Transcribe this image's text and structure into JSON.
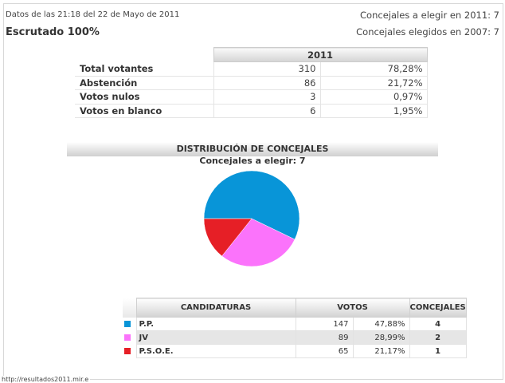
{
  "header": {
    "date_text": "Datos de las 21:18  del 22 de Mayo de 2011",
    "escrutado": "Escrutado 100%",
    "concejales_elegir": "Concejales a elegir en 2011: 7",
    "concejales_elegidos": "Concejales elegidos en 2007: 7"
  },
  "summary": {
    "year": "2011",
    "rows": [
      {
        "label": "Total votantes",
        "count": "310",
        "pct": "78,28%"
      },
      {
        "label": "Abstención",
        "count": "86",
        "pct": "21,72%"
      },
      {
        "label": "Votos nulos",
        "count": "3",
        "pct": "0,97%"
      },
      {
        "label": "Votos en blanco",
        "count": "6",
        "pct": "1,95%"
      }
    ]
  },
  "distribution": {
    "title": "DISTRIBUCIÓN DE CONCEJALES",
    "subtitle": "Concejales a elegir: 7"
  },
  "chart_data": {
    "type": "pie",
    "labels": [
      "P.P.",
      "JV",
      "P.S.O.E."
    ],
    "values": [
      4,
      2,
      1
    ],
    "colors": [
      "#0895d8",
      "#fb73fb",
      "#e61f26"
    ],
    "title": "DISTRIBUCIÓN DE CONCEJALES"
  },
  "candidates": {
    "headers": {
      "candidaturas": "CANDIDATURAS",
      "votos": "VOTOS",
      "concejales": "CONCEJALES"
    },
    "rows": [
      {
        "name": "P.P.",
        "color": "#0895d8",
        "votos": "147",
        "pct": "47,88%",
        "concejales": "4"
      },
      {
        "name": "JV",
        "color": "#fb73fb",
        "votos": "89",
        "pct": "28,99%",
        "concejales": "2"
      },
      {
        "name": "P.S.O.E.",
        "color": "#e61f26",
        "votos": "65",
        "pct": "21,17%",
        "concejales": "1"
      }
    ]
  },
  "status": {
    "url": "http://resultados2011.mir.e"
  }
}
